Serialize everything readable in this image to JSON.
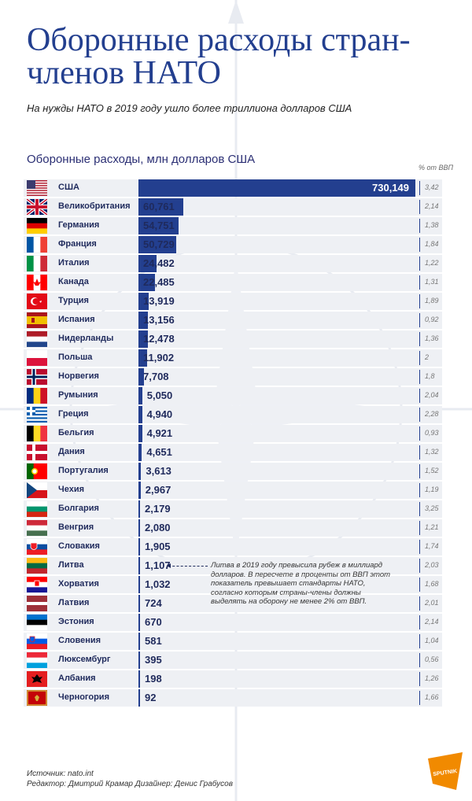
{
  "header": {
    "title": "Оборонные расходы стран-членов НАТО",
    "subtitle": "На нужды НАТО в 2019 году ушло более триллиона долларов США"
  },
  "chart_data": {
    "type": "bar",
    "orientation": "horizontal",
    "title": "Оборонные расходы, млн долларов США",
    "secondary_column_label": "% от ВВП",
    "categories": [
      "США",
      "Великобритания",
      "Германия",
      "Франция",
      "Италия",
      "Канада",
      "Турция",
      "Испания",
      "Нидерланды",
      "Польша",
      "Норвегия",
      "Румыния",
      "Греция",
      "Бельгия",
      "Дания",
      "Португалия",
      "Чехия",
      "Болгария",
      "Венгрия",
      "Словакия",
      "Литва",
      "Хорватия",
      "Латвия",
      "Эстония",
      "Словения",
      "Люксембург",
      "Албания",
      "Черногория"
    ],
    "values": [
      730149,
      60761,
      54751,
      50729,
      24482,
      22485,
      13919,
      13156,
      12478,
      11902,
      7708,
      5050,
      4940,
      4921,
      4651,
      3613,
      2967,
      2179,
      2080,
      1905,
      1107,
      1032,
      724,
      670,
      581,
      395,
      198,
      92
    ],
    "value_labels": [
      "730,149",
      "60,761",
      "54,751",
      "50,729",
      "24,482",
      "22,485",
      "13,919",
      "13,156",
      "12,478",
      "11,902",
      "7,708",
      "5,050",
      "4,940",
      "4,921",
      "4,651",
      "3,613",
      "2,967",
      "2,179",
      "2,080",
      "1,905",
      "1,107",
      "1,032",
      "724",
      "670",
      "581",
      "395",
      "198",
      "92"
    ],
    "gdp_percent": [
      3.42,
      2.14,
      1.38,
      1.84,
      1.22,
      1.31,
      1.89,
      0.92,
      1.36,
      2,
      1.8,
      2.04,
      2.28,
      0.93,
      1.32,
      1.52,
      1.19,
      3.25,
      1.21,
      1.74,
      2.03,
      1.68,
      2.01,
      2.14,
      1.04,
      0.56,
      1.26,
      1.66
    ],
    "gdp_labels": [
      "3,42",
      "2,14",
      "1,38",
      "1,84",
      "1,22",
      "1,31",
      "1,89",
      "0,92",
      "1,36",
      "2",
      "1,8",
      "2,04",
      "2,28",
      "0,93",
      "1,32",
      "1,52",
      "1,19",
      "3,25",
      "1,21",
      "1,74",
      "2,03",
      "1,68",
      "2,01",
      "2,14",
      "1,04",
      "0,56",
      "1,26",
      "1,66"
    ],
    "annotation": "Литва в 2019 году превысила рубеж в миллиард долларов. В пересчете в проценты от ВВП этот показатель превышает стандарты НАТО, согласно которым страны-члены должны выделять на оборону не менее 2% от ВВП."
  },
  "footer": {
    "source": "Источник: nato.int",
    "credits": "Редактор: Дмитрий Крамар  Дизайнер: Денис Грабусов",
    "logo_text": "SPUTNIK"
  },
  "colors": {
    "primary": "#233f8f",
    "band": "#eef0f4",
    "text": "#1f2a5c"
  }
}
